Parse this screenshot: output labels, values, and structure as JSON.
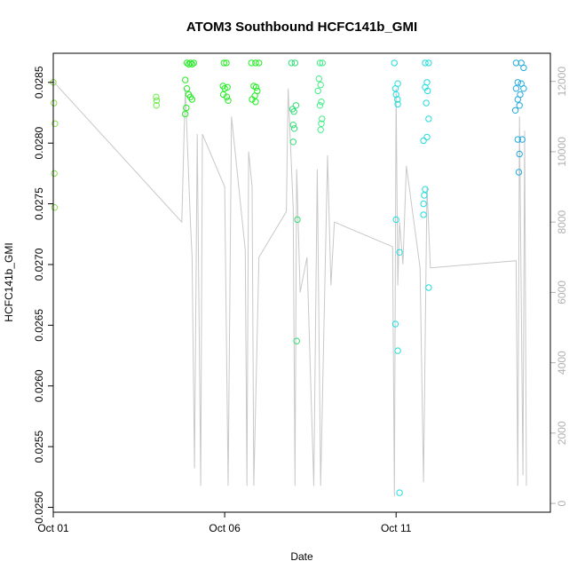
{
  "chart_data": {
    "type": "scatter",
    "title": "ATOM3 Southbound HCFC141b_GMI",
    "xlabel": "Date",
    "ylabel": "HCFC141b_GMI",
    "y2label": "",
    "xlim": [
      0,
      14.5
    ],
    "ylim": [
      0.02496,
      0.02874
    ],
    "y2lim": [
      -250,
      12800
    ],
    "x_ticks": [
      {
        "value": 0,
        "label": "Oct 01"
      },
      {
        "value": 5,
        "label": "Oct 06"
      },
      {
        "value": 10,
        "label": "Oct 11"
      }
    ],
    "y_ticks": [
      0.025,
      0.0255,
      0.026,
      0.0265,
      0.027,
      0.0275,
      0.028,
      0.0285
    ],
    "y2_ticks": [
      0,
      2000,
      4000,
      6000,
      8000,
      10000,
      12000
    ],
    "grid": false,
    "altitude_series": {
      "name": "",
      "color": "#c8c8c8",
      "x": [
        0.0,
        0.0,
        3.75,
        3.85,
        4.0,
        4.05,
        4.12,
        4.2,
        4.3,
        4.35,
        5.0,
        5.1,
        5.2,
        5.6,
        5.65,
        5.7,
        5.8,
        5.85,
        6.0,
        6.8,
        6.85,
        7.0,
        7.05,
        7.1,
        7.2,
        7.4,
        7.6,
        7.7,
        7.8,
        8.0,
        8.1,
        8.2,
        9.9,
        9.95,
        10.0,
        10.05,
        10.1,
        10.2,
        10.3,
        10.7,
        10.8,
        10.9,
        11.0,
        13.5,
        13.55,
        13.6,
        13.7,
        13.75,
        13.8
      ],
      "y": [
        1500,
        12000,
        8000,
        11800,
        8000,
        7000,
        1000,
        10500,
        500,
        10500,
        9000,
        500,
        11000,
        7200,
        500,
        10000,
        9000,
        500,
        7000,
        8300,
        11800,
        8400,
        500,
        9500,
        6000,
        7000,
        500,
        9500,
        500,
        9900,
        6200,
        8000,
        7300,
        200,
        11800,
        6200,
        8000,
        6800,
        9600,
        6700,
        600,
        9000,
        6700,
        6900,
        500,
        11000,
        800,
        10600,
        500
      ]
    },
    "hcfc_points": [
      {
        "x": 0.0,
        "y": 0.0285,
        "color": "#8be04e"
      },
      {
        "x": 0.02,
        "y": 0.02833,
        "color": "#8be04e"
      },
      {
        "x": 0.05,
        "y": 0.02816,
        "color": "#8be04e"
      },
      {
        "x": 0.03,
        "y": 0.02775,
        "color": "#8be04e"
      },
      {
        "x": 0.04,
        "y": 0.02747,
        "color": "#8be04e"
      },
      {
        "x": 3.0,
        "y": 0.02838,
        "color": "#66ee44"
      },
      {
        "x": 3.02,
        "y": 0.02835,
        "color": "#66ee44"
      },
      {
        "x": 3.01,
        "y": 0.02831,
        "color": "#66ee44"
      },
      {
        "x": 3.9,
        "y": 0.02866,
        "color": "#22ee22"
      },
      {
        "x": 3.95,
        "y": 0.02865,
        "color": "#22ee22"
      },
      {
        "x": 4.0,
        "y": 0.02866,
        "color": "#22ee22"
      },
      {
        "x": 4.05,
        "y": 0.02865,
        "color": "#22ee22"
      },
      {
        "x": 4.1,
        "y": 0.02866,
        "color": "#22ee22"
      },
      {
        "x": 3.85,
        "y": 0.02852,
        "color": "#22ee22"
      },
      {
        "x": 3.9,
        "y": 0.02845,
        "color": "#22ee22"
      },
      {
        "x": 3.95,
        "y": 0.0284,
        "color": "#22ee22"
      },
      {
        "x": 4.0,
        "y": 0.02838,
        "color": "#22ee22"
      },
      {
        "x": 4.05,
        "y": 0.02836,
        "color": "#22ee22"
      },
      {
        "x": 3.88,
        "y": 0.02829,
        "color": "#22ee22"
      },
      {
        "x": 3.85,
        "y": 0.02824,
        "color": "#22ee22"
      },
      {
        "x": 4.98,
        "y": 0.02866,
        "color": "#22ee22"
      },
      {
        "x": 5.05,
        "y": 0.02866,
        "color": "#22ee22"
      },
      {
        "x": 4.95,
        "y": 0.02847,
        "color": "#22ee22"
      },
      {
        "x": 5.0,
        "y": 0.02845,
        "color": "#22ee22"
      },
      {
        "x": 5.08,
        "y": 0.02846,
        "color": "#22ee22"
      },
      {
        "x": 4.96,
        "y": 0.0284,
        "color": "#22ee22"
      },
      {
        "x": 5.06,
        "y": 0.02838,
        "color": "#22ee22"
      },
      {
        "x": 5.1,
        "y": 0.02835,
        "color": "#22ee22"
      },
      {
        "x": 5.78,
        "y": 0.02866,
        "color": "#22ee22"
      },
      {
        "x": 5.9,
        "y": 0.02866,
        "color": "#22ee22"
      },
      {
        "x": 6.0,
        "y": 0.02866,
        "color": "#22ee22"
      },
      {
        "x": 5.85,
        "y": 0.02847,
        "color": "#22ee22"
      },
      {
        "x": 5.92,
        "y": 0.02846,
        "color": "#22ee22"
      },
      {
        "x": 5.95,
        "y": 0.02843,
        "color": "#22ee22"
      },
      {
        "x": 5.88,
        "y": 0.02839,
        "color": "#22ee22"
      },
      {
        "x": 5.8,
        "y": 0.02836,
        "color": "#22ee22"
      },
      {
        "x": 5.9,
        "y": 0.02834,
        "color": "#22ee22"
      },
      {
        "x": 6.95,
        "y": 0.02866,
        "color": "#33dd77"
      },
      {
        "x": 7.05,
        "y": 0.02866,
        "color": "#33dd77"
      },
      {
        "x": 6.98,
        "y": 0.02828,
        "color": "#33dd77"
      },
      {
        "x": 7.02,
        "y": 0.02826,
        "color": "#33dd77"
      },
      {
        "x": 7.08,
        "y": 0.02831,
        "color": "#33dd77"
      },
      {
        "x": 7.0,
        "y": 0.02815,
        "color": "#33dd77"
      },
      {
        "x": 7.03,
        "y": 0.02812,
        "color": "#33dd77"
      },
      {
        "x": 7.0,
        "y": 0.02801,
        "color": "#33dd77"
      },
      {
        "x": 7.12,
        "y": 0.02737,
        "color": "#33dd77"
      },
      {
        "x": 7.1,
        "y": 0.02637,
        "color": "#33dd77"
      },
      {
        "x": 7.78,
        "y": 0.02866,
        "color": "#44ee88"
      },
      {
        "x": 7.85,
        "y": 0.02866,
        "color": "#44ee88"
      },
      {
        "x": 7.75,
        "y": 0.02853,
        "color": "#44ee88"
      },
      {
        "x": 7.8,
        "y": 0.02848,
        "color": "#44ee88"
      },
      {
        "x": 7.72,
        "y": 0.02843,
        "color": "#44ee88"
      },
      {
        "x": 7.82,
        "y": 0.02834,
        "color": "#44ee88"
      },
      {
        "x": 7.78,
        "y": 0.02831,
        "color": "#44ee88"
      },
      {
        "x": 7.84,
        "y": 0.0282,
        "color": "#44ee88"
      },
      {
        "x": 7.82,
        "y": 0.02816,
        "color": "#44ee88"
      },
      {
        "x": 7.8,
        "y": 0.02811,
        "color": "#44ee88"
      },
      {
        "x": 9.95,
        "y": 0.02866,
        "color": "#22dddd"
      },
      {
        "x": 10.05,
        "y": 0.02849,
        "color": "#22dddd"
      },
      {
        "x": 9.98,
        "y": 0.02845,
        "color": "#22dddd"
      },
      {
        "x": 10.0,
        "y": 0.0284,
        "color": "#22dddd"
      },
      {
        "x": 10.04,
        "y": 0.02836,
        "color": "#22dddd"
      },
      {
        "x": 10.05,
        "y": 0.02832,
        "color": "#22dddd"
      },
      {
        "x": 10.0,
        "y": 0.02737,
        "color": "#22dddd"
      },
      {
        "x": 10.1,
        "y": 0.0271,
        "color": "#22dddd"
      },
      {
        "x": 9.98,
        "y": 0.02651,
        "color": "#22dddd"
      },
      {
        "x": 10.05,
        "y": 0.02629,
        "color": "#22dddd"
      },
      {
        "x": 10.1,
        "y": 0.02512,
        "color": "#22dddd"
      },
      {
        "x": 10.85,
        "y": 0.02866,
        "color": "#22dddd"
      },
      {
        "x": 10.95,
        "y": 0.02866,
        "color": "#22dddd"
      },
      {
        "x": 10.9,
        "y": 0.0285,
        "color": "#22dddd"
      },
      {
        "x": 10.85,
        "y": 0.02846,
        "color": "#22dddd"
      },
      {
        "x": 10.92,
        "y": 0.02843,
        "color": "#22dddd"
      },
      {
        "x": 10.88,
        "y": 0.02833,
        "color": "#22dddd"
      },
      {
        "x": 10.95,
        "y": 0.0282,
        "color": "#22dddd"
      },
      {
        "x": 10.8,
        "y": 0.02802,
        "color": "#22dddd"
      },
      {
        "x": 10.9,
        "y": 0.02805,
        "color": "#22dddd"
      },
      {
        "x": 10.85,
        "y": 0.02762,
        "color": "#22dddd"
      },
      {
        "x": 10.82,
        "y": 0.02757,
        "color": "#22dddd"
      },
      {
        "x": 10.8,
        "y": 0.0275,
        "color": "#22dddd"
      },
      {
        "x": 10.8,
        "y": 0.02741,
        "color": "#22dddd"
      },
      {
        "x": 10.95,
        "y": 0.02681,
        "color": "#22dddd"
      },
      {
        "x": 13.5,
        "y": 0.02866,
        "color": "#22aadd"
      },
      {
        "x": 13.65,
        "y": 0.02866,
        "color": "#22aadd"
      },
      {
        "x": 13.72,
        "y": 0.02862,
        "color": "#22aadd"
      },
      {
        "x": 13.55,
        "y": 0.0285,
        "color": "#22aadd"
      },
      {
        "x": 13.65,
        "y": 0.02849,
        "color": "#22aadd"
      },
      {
        "x": 13.5,
        "y": 0.02845,
        "color": "#22aadd"
      },
      {
        "x": 13.72,
        "y": 0.02845,
        "color": "#22aadd"
      },
      {
        "x": 13.62,
        "y": 0.0284,
        "color": "#22aadd"
      },
      {
        "x": 13.55,
        "y": 0.02836,
        "color": "#22aadd"
      },
      {
        "x": 13.6,
        "y": 0.02831,
        "color": "#22aadd"
      },
      {
        "x": 13.48,
        "y": 0.02827,
        "color": "#22aadd"
      },
      {
        "x": 13.55,
        "y": 0.02803,
        "color": "#22aadd"
      },
      {
        "x": 13.68,
        "y": 0.02803,
        "color": "#22aadd"
      },
      {
        "x": 13.6,
        "y": 0.02791,
        "color": "#22aadd"
      },
      {
        "x": 13.58,
        "y": 0.02776,
        "color": "#22aadd"
      }
    ]
  }
}
